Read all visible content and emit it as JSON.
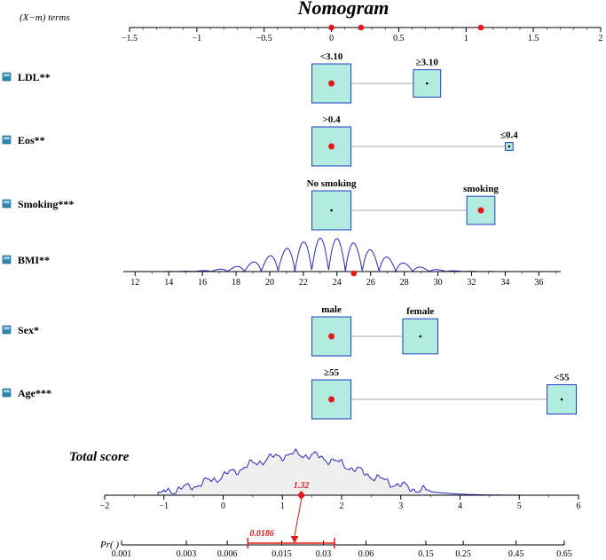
{
  "chart_data": {
    "type": "nomogram",
    "title": "Nomogram",
    "terms_label": "(X−m) terms",
    "terms_axis": {
      "ticks": [
        "−1.5",
        "−1",
        "−0.5",
        "0",
        "0.5",
        "1",
        "1.5",
        "2"
      ],
      "tick_values": [
        -1.5,
        -1,
        -0.5,
        0,
        0.5,
        1,
        1.5,
        2
      ],
      "range": [
        -1.5,
        2
      ],
      "points": [
        0,
        0.22,
        1.11
      ]
    },
    "variables": [
      {
        "label": "LDL**",
        "type": "categorical",
        "levels": [
          {
            "name": "<3.10",
            "value": 0,
            "size": 1.0,
            "selected": true
          },
          {
            "name": "≥3.10",
            "value": 0.71,
            "size": 0.7,
            "selected": false
          }
        ]
      },
      {
        "label": "Eos**",
        "type": "categorical",
        "levels": [
          {
            "name": ">0.4",
            "value": 0,
            "size": 1.0,
            "selected": true
          },
          {
            "name": "≤0.4",
            "value": 1.32,
            "size": 0.2,
            "selected": false
          }
        ]
      },
      {
        "label": "Smoking***",
        "type": "categorical",
        "levels": [
          {
            "name": "No smoking",
            "value": 0,
            "size": 1.0,
            "selected": false
          },
          {
            "name": "smoking",
            "value": 1.11,
            "size": 0.72,
            "selected": true
          }
        ]
      },
      {
        "label": "BMI**",
        "type": "continuous",
        "ticks": [
          "12",
          "14",
          "16",
          "18",
          "20",
          "22",
          "24",
          "26",
          "28",
          "30",
          "32",
          "34",
          "36"
        ],
        "tick_values": [
          12,
          14,
          16,
          18,
          20,
          22,
          24,
          26,
          28,
          30,
          32,
          34,
          36
        ],
        "range": [
          11.3,
          37.3
        ],
        "selected_value": 25
      },
      {
        "label": "Sex*",
        "type": "categorical",
        "levels": [
          {
            "name": "male",
            "value": 0,
            "size": 1.0,
            "selected": true
          },
          {
            "name": "female",
            "value": 0.66,
            "size": 0.9,
            "selected": false
          }
        ]
      },
      {
        "label": "Age***",
        "type": "categorical",
        "levels": [
          {
            "name": "≥55",
            "value": 0,
            "size": 1.0,
            "selected": true
          },
          {
            "name": "<55",
            "value": 1.71,
            "size": 0.75,
            "selected": false
          }
        ]
      }
    ],
    "total_score": {
      "label": "Total score",
      "ticks": [
        "−2",
        "−1",
        "0",
        "1",
        "2",
        "3",
        "4",
        "5",
        "6"
      ],
      "tick_values": [
        -2,
        -1,
        0,
        1,
        2,
        3,
        4,
        5,
        6
      ],
      "range": [
        -2,
        6
      ],
      "value": 1.32,
      "value_label": "1.32"
    },
    "probability": {
      "label": "Pr( )",
      "ticks": [
        "0.001",
        "0.003",
        "0.006",
        "0.015",
        "0.03",
        "0.06",
        "0.15",
        "0.25",
        "0.45",
        "0.65"
      ],
      "tick_values": [
        0.001,
        0.003,
        0.006,
        0.015,
        0.03,
        0.06,
        0.15,
        0.25,
        0.45,
        0.65
      ],
      "value": 0.0186,
      "value_label": "0.0186",
      "ci": [
        0.0085,
        0.036
      ]
    },
    "colors": {
      "box_fill": "#b2ebdf",
      "box_stroke": "#1f3fbf",
      "curve": "#2727c8",
      "highlight": "#e31a1c",
      "density_fill": "#efefef"
    }
  }
}
